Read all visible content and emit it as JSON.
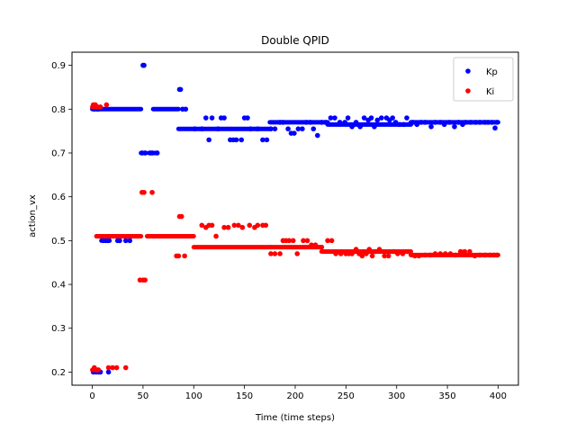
{
  "chart_data": {
    "type": "scatter",
    "title": "Double QPID",
    "xlabel": "Time (time steps)",
    "ylabel": "action_vx",
    "xlim": [
      -20,
      420
    ],
    "ylim": [
      0.17,
      0.93
    ],
    "xticks": [
      0,
      50,
      100,
      150,
      200,
      250,
      300,
      350,
      400
    ],
    "yticks": [
      0.2,
      0.3,
      0.4,
      0.5,
      0.6,
      0.7,
      0.8,
      0.9
    ],
    "grid": false,
    "legend_position": "top-right",
    "series": [
      {
        "name": "Kp",
        "color": "#0000ff",
        "segments": [
          {
            "x0": 0,
            "x1": 7,
            "y": 0.8
          },
          {
            "x0": 1,
            "x1": 8,
            "y": 0.2
          },
          {
            "x0": 9,
            "x1": 17,
            "y": 0.5
          },
          {
            "x0": 5,
            "x1": 48,
            "y": 0.8
          },
          {
            "x0": 48,
            "x1": 53,
            "y": 0.7
          },
          {
            "x0": 56,
            "x1": 63,
            "y": 0.7
          },
          {
            "x0": 60,
            "x1": 85,
            "y": 0.8
          },
          {
            "x0": 85,
            "x1": 175,
            "y": 0.755
          },
          {
            "x0": 175,
            "x1": 232,
            "y": 0.77
          },
          {
            "x0": 232,
            "x1": 314,
            "y": 0.765
          },
          {
            "x0": 314,
            "x1": 400,
            "y": 0.77
          }
        ],
        "points": [
          [
            1,
            0.2
          ],
          [
            4,
            0.2
          ],
          [
            6,
            0.2
          ],
          [
            8,
            0.2
          ],
          [
            16,
            0.2
          ],
          [
            2,
            0.8
          ],
          [
            5,
            0.8
          ],
          [
            11,
            0.5
          ],
          [
            14,
            0.5
          ],
          [
            16,
            0.5
          ],
          [
            25,
            0.5
          ],
          [
            27,
            0.5
          ],
          [
            33,
            0.5
          ],
          [
            37,
            0.5
          ],
          [
            49,
            0.7
          ],
          [
            52,
            0.7
          ],
          [
            57,
            0.7
          ],
          [
            59,
            0.7
          ],
          [
            64,
            0.7
          ],
          [
            50,
            0.9
          ],
          [
            51,
            0.9
          ],
          [
            86,
            0.845
          ],
          [
            87,
            0.845
          ],
          [
            89,
            0.8
          ],
          [
            92,
            0.8
          ],
          [
            101,
            0.755
          ],
          [
            108,
            0.755
          ],
          [
            112,
            0.78
          ],
          [
            115,
            0.73
          ],
          [
            118,
            0.78
          ],
          [
            124,
            0.755
          ],
          [
            127,
            0.78
          ],
          [
            130,
            0.78
          ],
          [
            136,
            0.73
          ],
          [
            139,
            0.73
          ],
          [
            142,
            0.73
          ],
          [
            147,
            0.73
          ],
          [
            150,
            0.78
          ],
          [
            153,
            0.78
          ],
          [
            156,
            0.755
          ],
          [
            163,
            0.755
          ],
          [
            168,
            0.73
          ],
          [
            172,
            0.73
          ],
          [
            176,
            0.755
          ],
          [
            180,
            0.755
          ],
          [
            185,
            0.77
          ],
          [
            188,
            0.77
          ],
          [
            193,
            0.755
          ],
          [
            196,
            0.745
          ],
          [
            199,
            0.745
          ],
          [
            203,
            0.755
          ],
          [
            207,
            0.755
          ],
          [
            211,
            0.77
          ],
          [
            215,
            0.77
          ],
          [
            218,
            0.755
          ],
          [
            222,
            0.74
          ],
          [
            226,
            0.77
          ],
          [
            230,
            0.77
          ],
          [
            235,
            0.78
          ],
          [
            239,
            0.78
          ],
          [
            244,
            0.77
          ],
          [
            249,
            0.77
          ],
          [
            252,
            0.78
          ],
          [
            256,
            0.76
          ],
          [
            260,
            0.77
          ],
          [
            264,
            0.76
          ],
          [
            268,
            0.78
          ],
          [
            272,
            0.775
          ],
          [
            275,
            0.78
          ],
          [
            278,
            0.76
          ],
          [
            281,
            0.775
          ],
          [
            285,
            0.78
          ],
          [
            290,
            0.78
          ],
          [
            293,
            0.775
          ],
          [
            296,
            0.78
          ],
          [
            299,
            0.77
          ],
          [
            303,
            0.765
          ],
          [
            307,
            0.765
          ],
          [
            310,
            0.78
          ],
          [
            316,
            0.77
          ],
          [
            320,
            0.765
          ],
          [
            324,
            0.77
          ],
          [
            328,
            0.77
          ],
          [
            334,
            0.76
          ],
          [
            338,
            0.77
          ],
          [
            343,
            0.77
          ],
          [
            347,
            0.765
          ],
          [
            352,
            0.77
          ],
          [
            357,
            0.76
          ],
          [
            361,
            0.77
          ],
          [
            365,
            0.765
          ],
          [
            368,
            0.77
          ],
          [
            373,
            0.77
          ],
          [
            378,
            0.77
          ],
          [
            382,
            0.77
          ],
          [
            387,
            0.77
          ],
          [
            390,
            0.77
          ],
          [
            394,
            0.77
          ],
          [
            397,
            0.757
          ],
          [
            399,
            0.77
          ]
        ]
      },
      {
        "name": "Ki",
        "color": "#ff0000",
        "segments": [
          {
            "x0": 0,
            "x1": 6,
            "y": 0.805
          },
          {
            "x0": 0,
            "x1": 5,
            "y": 0.205
          },
          {
            "x0": 4,
            "x1": 48,
            "y": 0.51
          },
          {
            "x0": 54,
            "x1": 100,
            "y": 0.51
          },
          {
            "x0": 100,
            "x1": 176,
            "y": 0.485
          },
          {
            "x0": 176,
            "x1": 226,
            "y": 0.485
          },
          {
            "x0": 226,
            "x1": 314,
            "y": 0.475
          },
          {
            "x0": 314,
            "x1": 400,
            "y": 0.467
          }
        ],
        "points": [
          [
            2,
            0.21
          ],
          [
            4,
            0.205
          ],
          [
            6,
            0.205
          ],
          [
            16,
            0.21
          ],
          [
            20,
            0.21
          ],
          [
            24,
            0.21
          ],
          [
            33,
            0.21
          ],
          [
            1,
            0.81
          ],
          [
            3,
            0.81
          ],
          [
            5,
            0.805
          ],
          [
            8,
            0.805
          ],
          [
            14,
            0.81
          ],
          [
            47,
            0.41
          ],
          [
            50,
            0.41
          ],
          [
            52,
            0.41
          ],
          [
            49,
            0.61
          ],
          [
            51,
            0.61
          ],
          [
            59,
            0.61
          ],
          [
            86,
            0.555
          ],
          [
            88,
            0.555
          ],
          [
            91,
            0.465
          ],
          [
            83,
            0.465
          ],
          [
            85,
            0.465
          ],
          [
            108,
            0.535
          ],
          [
            112,
            0.53
          ],
          [
            115,
            0.535
          ],
          [
            118,
            0.535
          ],
          [
            122,
            0.51
          ],
          [
            130,
            0.53
          ],
          [
            134,
            0.53
          ],
          [
            140,
            0.535
          ],
          [
            144,
            0.535
          ],
          [
            148,
            0.53
          ],
          [
            155,
            0.535
          ],
          [
            160,
            0.53
          ],
          [
            163,
            0.535
          ],
          [
            168,
            0.535
          ],
          [
            171,
            0.535
          ],
          [
            176,
            0.47
          ],
          [
            180,
            0.47
          ],
          [
            185,
            0.47
          ],
          [
            188,
            0.5
          ],
          [
            191,
            0.5
          ],
          [
            194,
            0.5
          ],
          [
            198,
            0.5
          ],
          [
            202,
            0.47
          ],
          [
            208,
            0.5
          ],
          [
            212,
            0.5
          ],
          [
            216,
            0.49
          ],
          [
            220,
            0.49
          ],
          [
            226,
            0.485
          ],
          [
            232,
            0.5
          ],
          [
            236,
            0.5
          ],
          [
            240,
            0.47
          ],
          [
            245,
            0.47
          ],
          [
            250,
            0.47
          ],
          [
            253,
            0.47
          ],
          [
            256,
            0.47
          ],
          [
            260,
            0.48
          ],
          [
            263,
            0.47
          ],
          [
            266,
            0.465
          ],
          [
            270,
            0.47
          ],
          [
            273,
            0.48
          ],
          [
            276,
            0.465
          ],
          [
            279,
            0.475
          ],
          [
            283,
            0.48
          ],
          [
            288,
            0.465
          ],
          [
            292,
            0.465
          ],
          [
            297,
            0.475
          ],
          [
            301,
            0.47
          ],
          [
            306,
            0.47
          ],
          [
            311,
            0.475
          ],
          [
            318,
            0.465
          ],
          [
            322,
            0.465
          ],
          [
            328,
            0.467
          ],
          [
            333,
            0.467
          ],
          [
            338,
            0.47
          ],
          [
            343,
            0.47
          ],
          [
            348,
            0.47
          ],
          [
            353,
            0.47
          ],
          [
            358,
            0.467
          ],
          [
            363,
            0.475
          ],
          [
            367,
            0.475
          ],
          [
            372,
            0.475
          ],
          [
            377,
            0.465
          ],
          [
            382,
            0.467
          ],
          [
            387,
            0.467
          ],
          [
            392,
            0.467
          ],
          [
            396,
            0.467
          ],
          [
            399,
            0.467
          ]
        ]
      }
    ]
  }
}
